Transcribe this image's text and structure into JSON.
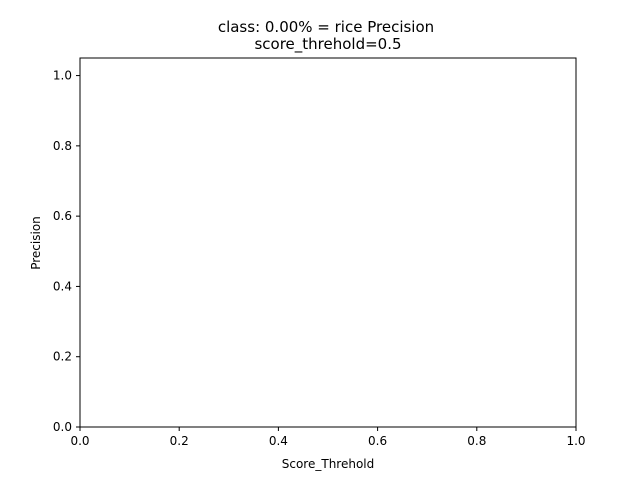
{
  "chart_data": {
    "type": "line",
    "title": "class: 0.00% = rice Precision",
    "subtitle": "score_threhold=0.5",
    "xlabel": "Score_Threhold",
    "ylabel": "Precision",
    "xlim": [
      0.0,
      1.0
    ],
    "ylim": [
      0.0,
      1.05
    ],
    "xticks": [
      "0.0",
      "0.2",
      "0.4",
      "0.6",
      "0.8",
      "1.0"
    ],
    "yticks": [
      "0.0",
      "0.2",
      "0.4",
      "0.6",
      "0.8",
      "1.0"
    ],
    "grid": false,
    "series": []
  }
}
